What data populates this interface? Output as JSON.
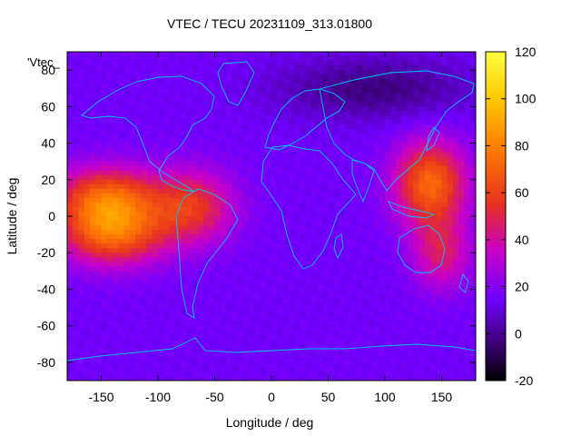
{
  "chart_data": {
    "type": "heatmap",
    "title": "VTEC / TECU 20231109_313.01800",
    "xlabel": "Longitude / deg",
    "ylabel": "Latitude / deg",
    "series_label": "'Vtec_",
    "xlim": [
      -180,
      180
    ],
    "ylim": [
      -90,
      90
    ],
    "x_ticks": [
      -150,
      -100,
      -50,
      0,
      50,
      100,
      150
    ],
    "y_ticks": [
      -80,
      -60,
      -40,
      -20,
      0,
      20,
      40,
      60,
      80
    ],
    "colorbar": {
      "range": [
        -20,
        120
      ],
      "ticks": [
        -20,
        0,
        20,
        40,
        60,
        80,
        100,
        120
      ],
      "palette": [
        "#000000",
        "#3a0070",
        "#7000ff",
        "#c800c8",
        "#e83020",
        "#ff8000",
        "#ffc800",
        "#ffff40"
      ],
      "palette_stops": [
        -20,
        -5,
        15,
        35,
        55,
        80,
        100,
        120
      ]
    },
    "background_tecu": 15,
    "features": [
      {
        "name": "pacific-crest-north",
        "lon": -145,
        "lat": 10,
        "tecu": 68
      },
      {
        "name": "pacific-crest-south",
        "lon": -140,
        "lat": -10,
        "tecu": 68
      },
      {
        "name": "atlantic-crest",
        "lon": -70,
        "lat": 5,
        "tecu": 55
      },
      {
        "name": "asia-crest",
        "lon": 140,
        "lat": 18,
        "tecu": 72
      },
      {
        "name": "oceania-south",
        "lon": 150,
        "lat": -20,
        "tecu": 45
      },
      {
        "name": "arctic-depletion",
        "lon": 90,
        "lat": 70,
        "tecu": -3
      }
    ],
    "coastline_color": "#00c8ff"
  }
}
